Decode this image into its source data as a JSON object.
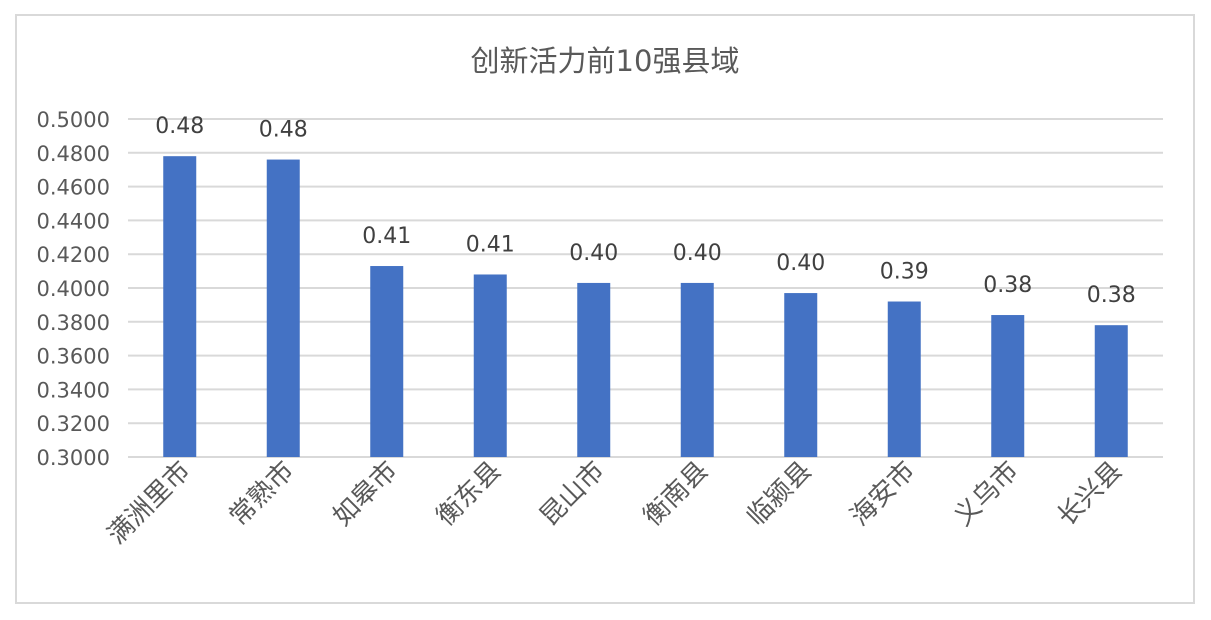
{
  "chart_data": {
    "type": "bar",
    "title": "创新活力前10强县域",
    "categories": [
      "满洲里市",
      "常熟市",
      "如皋市",
      "衡东县",
      "昆山市",
      "衡南县",
      "临颍县",
      "海安市",
      "义乌市",
      "长兴县"
    ],
    "values": [
      0.478,
      0.476,
      0.413,
      0.408,
      0.403,
      0.403,
      0.397,
      0.392,
      0.384,
      0.378
    ],
    "data_labels": [
      "0.48",
      "0.48",
      "0.41",
      "0.41",
      "0.40",
      "0.40",
      "0.40",
      "0.39",
      "0.38",
      "0.38"
    ],
    "yticks": [
      "0.3000",
      "0.3200",
      "0.3400",
      "0.3600",
      "0.3800",
      "0.4000",
      "0.4200",
      "0.4400",
      "0.4600",
      "0.4800",
      "0.5000"
    ],
    "ylim": [
      0.3,
      0.5
    ],
    "xlabel": "",
    "ylabel": "",
    "grid": true,
    "bar_color": "#4472c4",
    "grid_color": "#d9d9d9"
  }
}
